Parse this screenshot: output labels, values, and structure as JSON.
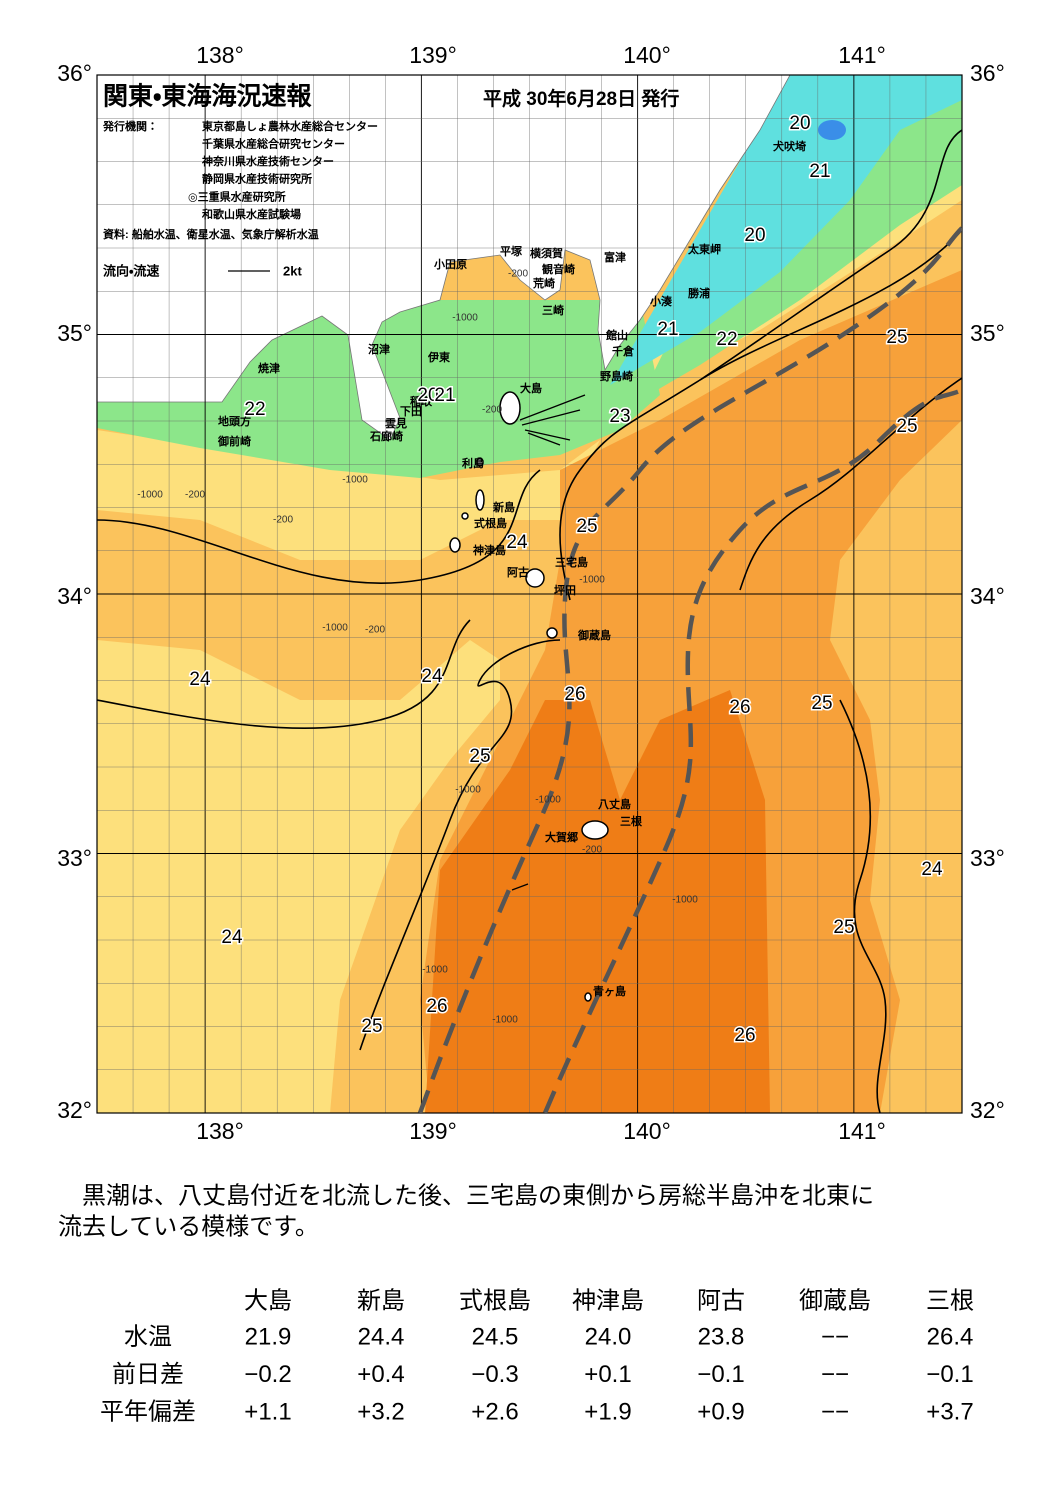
{
  "map": {
    "title": "関東・東海海況速報",
    "date": "平成 30年6月28日 発行",
    "issuer_label": "発行機関：",
    "issuers": [
      "東京都島しょ農林水産総合センター",
      "千葉県水産総合研究センター",
      "神奈川県水産技術センター",
      "静岡県水産技術研究所",
      "◎三重県水産研究所",
      "和歌山県水産試験場"
    ],
    "source": "資料: 船舶水温、衛星水温、気象庁解析水温",
    "legend_label": "流向・流速",
    "legend_scale": "2kt",
    "lon_labels": [
      "138°",
      "139°",
      "140°",
      "141°"
    ],
    "lat_labels": [
      "36°",
      "35°",
      "34°",
      "33°",
      "32°"
    ],
    "places": [
      "小田原",
      "平塚",
      "横須賀",
      "観音崎",
      "荒崎",
      "三崎",
      "富津",
      "館山",
      "千倉",
      "野島崎",
      "小湊",
      "勝浦",
      "太東岬",
      "犬吠埼",
      "沼津",
      "伊東",
      "焼津",
      "稲取",
      "下田",
      "雲見",
      "石廊崎",
      "地頭方",
      "御前崎",
      "大島",
      "利島",
      "新島",
      "式根島",
      "神津島",
      "阿古",
      "三宅島",
      "坪田",
      "御蔵島",
      "八丈島",
      "三根",
      "大賀郷",
      "青ヶ島"
    ],
    "isotherm_labels": [
      "20",
      "21",
      "20",
      "21",
      "22",
      "25",
      "25",
      "23",
      "22",
      "20",
      "21",
      "25",
      "24",
      "24",
      "24",
      "26",
      "26",
      "25",
      "25",
      "24",
      "25",
      "24",
      "26",
      "25",
      "26"
    ],
    "depth_labels": [
      "-200",
      "-1000",
      "-200",
      "-1000",
      "-200",
      "-1000",
      "-200",
      "-1000",
      "-200",
      "-1000",
      "-1000",
      "-1000",
      "-1000",
      "-200",
      "-1000",
      "-1000"
    ]
  },
  "description": [
    "　黒潮は、八丈島付近を北流した後、三宅島の東側から房総半島沖を北東に",
    "流去している模様です。"
  ],
  "table": {
    "columns": [
      "大島",
      "新島",
      "式根島",
      "神津島",
      "阿古",
      "御蔵島",
      "三根"
    ],
    "rows": [
      {
        "label": "水温",
        "values": [
          "21.9",
          "24.4",
          "24.5",
          "24.0",
          "23.8",
          "−−",
          "26.4"
        ]
      },
      {
        "label": "前日差",
        "values": [
          "−0.2",
          "+0.4",
          "−0.3",
          "+0.1",
          "−0.1",
          "−−",
          "−0.1"
        ]
      },
      {
        "label": "平年偏差",
        "values": [
          "+1.1",
          "+3.2",
          "+2.6",
          "+1.9",
          "+0.9",
          "−−",
          "+3.7"
        ]
      }
    ]
  }
}
